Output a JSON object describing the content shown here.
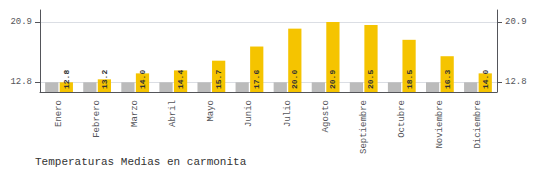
{
  "chart_data": {
    "type": "bar",
    "title": "Temperaturas Medias en carmonita",
    "categories": [
      "Enero",
      "Febrero",
      "Marzo",
      "Abril",
      "Mayo",
      "Junio",
      "Julio",
      "Agosto",
      "Septiembre",
      "Octubre",
      "Noviembre",
      "Diciembre"
    ],
    "series": [
      {
        "color": "#BBBBBB",
        "values": [
          12.8,
          12.8,
          12.8,
          12.8,
          12.8,
          12.8,
          12.8,
          12.8,
          12.8,
          12.8,
          12.8,
          12.8
        ]
      },
      {
        "color": "#F5C400",
        "values": [
          12.8,
          13.2,
          14.0,
          14.4,
          15.7,
          17.6,
          20.0,
          20.9,
          20.5,
          18.5,
          16.3,
          14.0
        ],
        "value_labels": [
          "12.8",
          "13.2",
          "14.0",
          "14.4",
          "15.7",
          "17.6",
          "20.0",
          "20.9",
          "20.5",
          "18.5",
          "16.3",
          "14.0"
        ],
        "data_labels": true
      }
    ],
    "ylim": [
      11.5,
      22.5
    ],
    "yticks": [
      12.8,
      20.9
    ],
    "grid": true
  }
}
